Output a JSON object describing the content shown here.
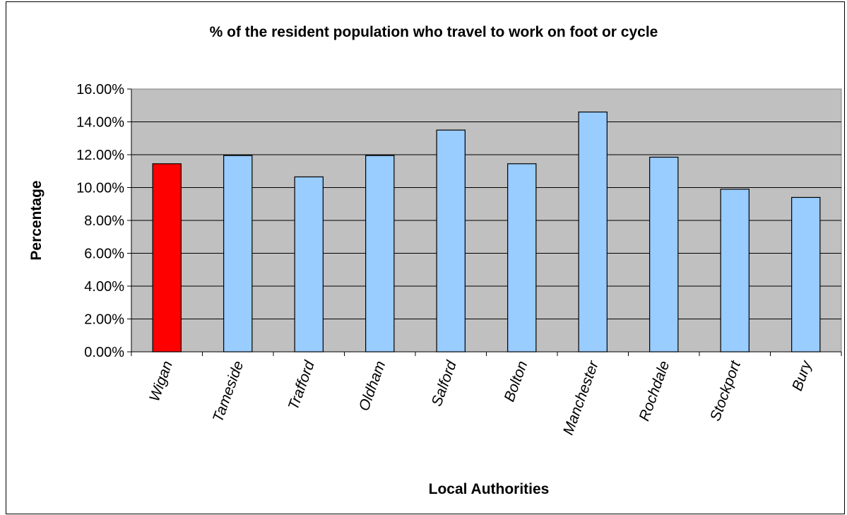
{
  "chart_data": {
    "type": "bar",
    "title": "% of the resident population who travel to work on foot or cycle",
    "xlabel": "Local Authorities",
    "ylabel": "Percentage",
    "categories": [
      "Wigan",
      "Tameside",
      "Trafford",
      "Oldham",
      "Salford",
      "Bolton",
      "Manchester",
      "Rochdale",
      "Stockport",
      "Bury"
    ],
    "values": [
      11.45,
      11.95,
      10.65,
      11.95,
      13.5,
      11.45,
      14.6,
      11.85,
      9.9,
      9.4
    ],
    "bar_colors": [
      "#ff0000",
      "#99ccff",
      "#99ccff",
      "#99ccff",
      "#99ccff",
      "#99ccff",
      "#99ccff",
      "#99ccff",
      "#99ccff",
      "#99ccff"
    ],
    "ylim": [
      0,
      16
    ],
    "yticks": [
      "0.00%",
      "2.00%",
      "4.00%",
      "6.00%",
      "8.00%",
      "10.00%",
      "12.00%",
      "14.00%",
      "16.00%"
    ],
    "grid": true,
    "legend": "none",
    "plot_background": "#c0c0c0"
  }
}
